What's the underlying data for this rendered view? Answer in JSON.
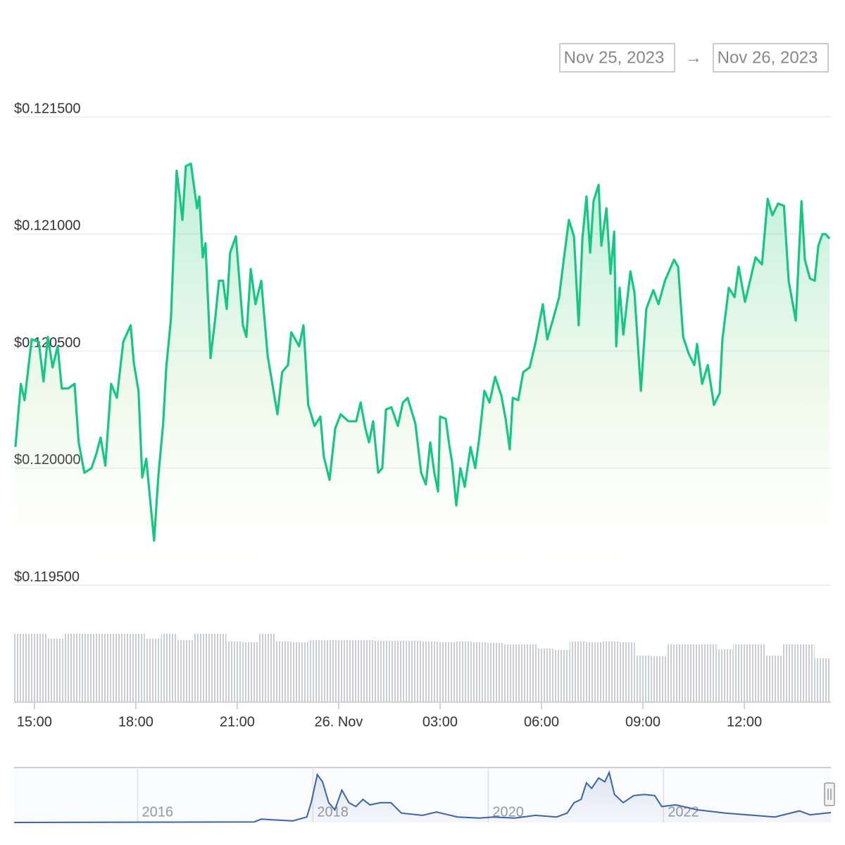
{
  "chart_data": {
    "type": "line",
    "date_from": "Nov 25, 2023",
    "date_arrow": "→",
    "date_to": "Nov 26, 2023",
    "color": "#16c784",
    "x": [
      14.44,
      14.6,
      14.71,
      14.92,
      15.13,
      15.27,
      15.4,
      15.54,
      15.69,
      15.81,
      16.0,
      16.19,
      16.31,
      16.48,
      16.69,
      16.83,
      16.96,
      17.1,
      17.27,
      17.44,
      17.63,
      17.85,
      17.94,
      18.08,
      18.19,
      18.31,
      18.54,
      18.67,
      18.81,
      18.9,
      19.04,
      19.21,
      19.38,
      19.48,
      19.63,
      19.81,
      19.88,
      19.98,
      20.06,
      20.21,
      20.35,
      20.46,
      20.58,
      20.69,
      20.79,
      20.96,
      21.17,
      21.27,
      21.4,
      21.54,
      21.71,
      21.9,
      22.19,
      22.33,
      22.5,
      22.6,
      22.83,
      22.96,
      23.1,
      23.29,
      23.46,
      23.56,
      23.73,
      23.9,
      24.06,
      24.29,
      24.52,
      24.65,
      24.79,
      24.9,
      25.02,
      25.17,
      25.29,
      25.4,
      25.56,
      25.75,
      25.9,
      26.04,
      26.27,
      26.44,
      26.58,
      26.71,
      26.83,
      26.94,
      27.0,
      27.17,
      27.27,
      27.35,
      27.48,
      27.6,
      27.73,
      27.9,
      28.04,
      28.17,
      28.31,
      28.46,
      28.63,
      28.81,
      28.94,
      29.06,
      29.15,
      29.31,
      29.46,
      29.65,
      29.83,
      30.04,
      30.17,
      30.35,
      30.52,
      30.65,
      30.81,
      30.96,
      31.1,
      31.21,
      31.33,
      31.44,
      31.54,
      31.69,
      31.77,
      31.92,
      32.04,
      32.15,
      32.21,
      32.31,
      32.42,
      32.63,
      32.75,
      32.94,
      33.1,
      33.31,
      33.46,
      33.65,
      33.92,
      34.04,
      34.19,
      34.35,
      34.52,
      34.6,
      34.75,
      34.92,
      35.1,
      35.27,
      35.35,
      35.54,
      35.71,
      35.83,
      36.02,
      36.17,
      36.33,
      36.52,
      36.69,
      36.83,
      37.0,
      37.17,
      37.31,
      37.52,
      37.69,
      37.79,
      37.94,
      38.08,
      38.19,
      38.31,
      38.4,
      38.52
    ],
    "values": [
      0.12009,
      0.12036,
      0.12029,
      0.12055,
      0.12054,
      0.12037,
      0.12056,
      0.12043,
      0.12052,
      0.12034,
      0.12034,
      0.12036,
      0.12011,
      0.11998,
      0.12,
      0.12006,
      0.12013,
      0.12001,
      0.12036,
      0.1203,
      0.12054,
      0.12061,
      0.12045,
      0.12033,
      0.11996,
      0.12004,
      0.11969,
      0.11997,
      0.12019,
      0.12043,
      0.12064,
      0.12127,
      0.12106,
      0.12129,
      0.1213,
      0.12111,
      0.12116,
      0.1209,
      0.12096,
      0.12047,
      0.12064,
      0.1208,
      0.1208,
      0.12068,
      0.12092,
      0.12099,
      0.12061,
      0.12056,
      0.12085,
      0.1207,
      0.1208,
      0.12048,
      0.12023,
      0.12041,
      0.12044,
      0.12058,
      0.12052,
      0.12061,
      0.12027,
      0.12018,
      0.12022,
      0.12005,
      0.11995,
      0.12017,
      0.12023,
      0.1202,
      0.1202,
      0.12028,
      0.12017,
      0.12011,
      0.1202,
      0.11998,
      0.12,
      0.12025,
      0.12026,
      0.12018,
      0.12028,
      0.1203,
      0.12019,
      0.11998,
      0.11993,
      0.12011,
      0.11998,
      0.1199,
      0.12022,
      0.12021,
      0.1201,
      0.12003,
      0.11984,
      0.12,
      0.11992,
      0.12009,
      0.12,
      0.12014,
      0.12033,
      0.12028,
      0.12039,
      0.12031,
      0.12021,
      0.12008,
      0.1203,
      0.12029,
      0.12041,
      0.12043,
      0.12054,
      0.1207,
      0.12055,
      0.12064,
      0.12073,
      0.12088,
      0.12106,
      0.12099,
      0.12061,
      0.12098,
      0.12116,
      0.12092,
      0.12114,
      0.12121,
      0.12095,
      0.12111,
      0.12083,
      0.12101,
      0.12052,
      0.12077,
      0.12057,
      0.12084,
      0.12075,
      0.12033,
      0.12068,
      0.12076,
      0.1207,
      0.1208,
      0.12089,
      0.12086,
      0.12056,
      0.12049,
      0.12044,
      0.12053,
      0.12036,
      0.12044,
      0.12027,
      0.12032,
      0.12055,
      0.12077,
      0.12073,
      0.12086,
      0.12071,
      0.1208,
      0.1209,
      0.12087,
      0.12115,
      0.12108,
      0.12113,
      0.12112,
      0.1208,
      0.12063,
      0.12114,
      0.12089,
      0.12081,
      0.1208,
      0.12095,
      0.121,
      0.121,
      0.12098
    ],
    "xlim": [
      14.4,
      38.56
    ],
    "xticks": [
      {
        "value": 15,
        "label": "15:00"
      },
      {
        "value": 18,
        "label": "18:00"
      },
      {
        "value": 21,
        "label": "21:00"
      },
      {
        "value": 24,
        "label": "26. Nov"
      },
      {
        "value": 27,
        "label": "03:00"
      },
      {
        "value": 30,
        "label": "06:00"
      },
      {
        "value": 33,
        "label": "09:00"
      },
      {
        "value": 36,
        "label": "12:00"
      }
    ],
    "ylim": [
      0.1195,
      0.1215
    ],
    "yticks": [
      {
        "value": 0.1195,
        "label": "$0.119500"
      },
      {
        "value": 0.12,
        "label": "$0.120000"
      },
      {
        "value": 0.1205,
        "label": "$0.120500"
      },
      {
        "value": 0.121,
        "label": "$0.121000"
      },
      {
        "value": 0.1215,
        "label": "$0.121500"
      }
    ],
    "grid": true,
    "volume": {
      "color": "#c9ced6",
      "ylim": [
        0,
        100
      ],
      "values": [
        97,
        97,
        90,
        97,
        97,
        97,
        97,
        97,
        90,
        97,
        88,
        97,
        97,
        86,
        85,
        97,
        86,
        85,
        88,
        88,
        88,
        88,
        87,
        87,
        87,
        86,
        85,
        86,
        85,
        84,
        82,
        82,
        76,
        74,
        86,
        85,
        86,
        85,
        66,
        65,
        82,
        82,
        82,
        75,
        82,
        82,
        66,
        82,
        82,
        62
      ]
    },
    "navigator": {
      "color": "#3b64a8",
      "ylim": [
        0,
        100
      ],
      "xlim": [
        2014.59,
        2023.91
      ],
      "xticks": [
        2016,
        2018,
        2020,
        2022
      ],
      "x": [
        2014.59,
        2017.33,
        2017.41,
        2017.77,
        2017.93,
        2017.98,
        2018.05,
        2018.11,
        2018.18,
        2018.25,
        2018.33,
        2018.41,
        2018.49,
        2018.57,
        2018.65,
        2018.77,
        2018.89,
        2019.01,
        2019.25,
        2019.41,
        2019.65,
        2019.9,
        2020.06,
        2020.3,
        2020.54,
        2020.78,
        2020.9,
        2020.98,
        2021.06,
        2021.12,
        2021.18,
        2021.26,
        2021.33,
        2021.38,
        2021.44,
        2021.54,
        2021.66,
        2021.78,
        2021.9,
        2021.98,
        2022.14,
        2022.39,
        2022.71,
        2023.03,
        2023.27,
        2023.55,
        2023.67,
        2023.91
      ],
      "values": [
        0,
        1,
        6,
        3,
        10,
        36,
        87,
        74,
        36,
        23,
        59,
        36,
        29,
        42,
        32,
        36,
        36,
        17,
        13,
        19,
        10,
        8,
        10,
        8,
        13,
        10,
        17,
        36,
        42,
        72,
        62,
        81,
        74,
        91,
        51,
        36,
        49,
        51,
        49,
        29,
        32,
        23,
        17,
        13,
        10,
        21,
        14,
        18
      ]
    }
  }
}
